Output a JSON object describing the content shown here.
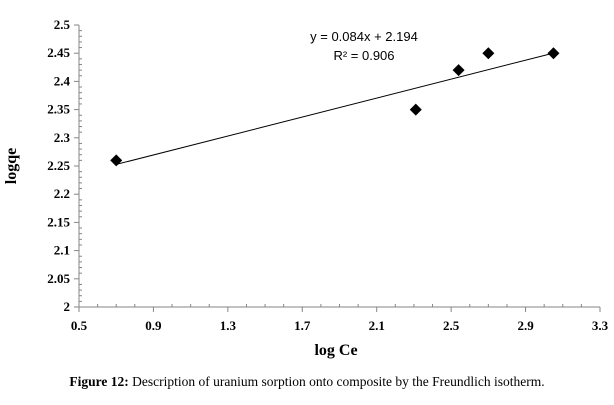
{
  "chart_data": {
    "type": "scatter",
    "xlabel": "log Ce",
    "ylabel": "logqe",
    "xlim": [
      0.5,
      3.3
    ],
    "ylim": [
      2,
      2.5
    ],
    "xticks": [
      "0.5",
      "0.9",
      "1.3",
      "1.7",
      "2.1",
      "2.5",
      "2.9",
      "3.3"
    ],
    "yticks": [
      "2",
      "2.05",
      "2.1",
      "2.15",
      "2.2",
      "2.25",
      "2.3",
      "2.35",
      "2.4",
      "2.45",
      "2.5"
    ],
    "grid": false,
    "points": [
      {
        "x": 0.7,
        "y": 2.26
      },
      {
        "x": 2.31,
        "y": 2.35
      },
      {
        "x": 2.54,
        "y": 2.42
      },
      {
        "x": 2.7,
        "y": 2.45
      },
      {
        "x": 3.05,
        "y": 2.45
      }
    ],
    "trendline": {
      "slope": 0.084,
      "intercept": 2.194,
      "x_range": [
        0.7,
        3.05
      ]
    },
    "equation": "y = 0.084x + 2.194",
    "r_squared": "R² = 0.906",
    "marker_color": "#000000"
  },
  "caption": {
    "label": "Figure 12:",
    "text": " Description of uranium sorption onto composite by the Freundlich isotherm."
  }
}
